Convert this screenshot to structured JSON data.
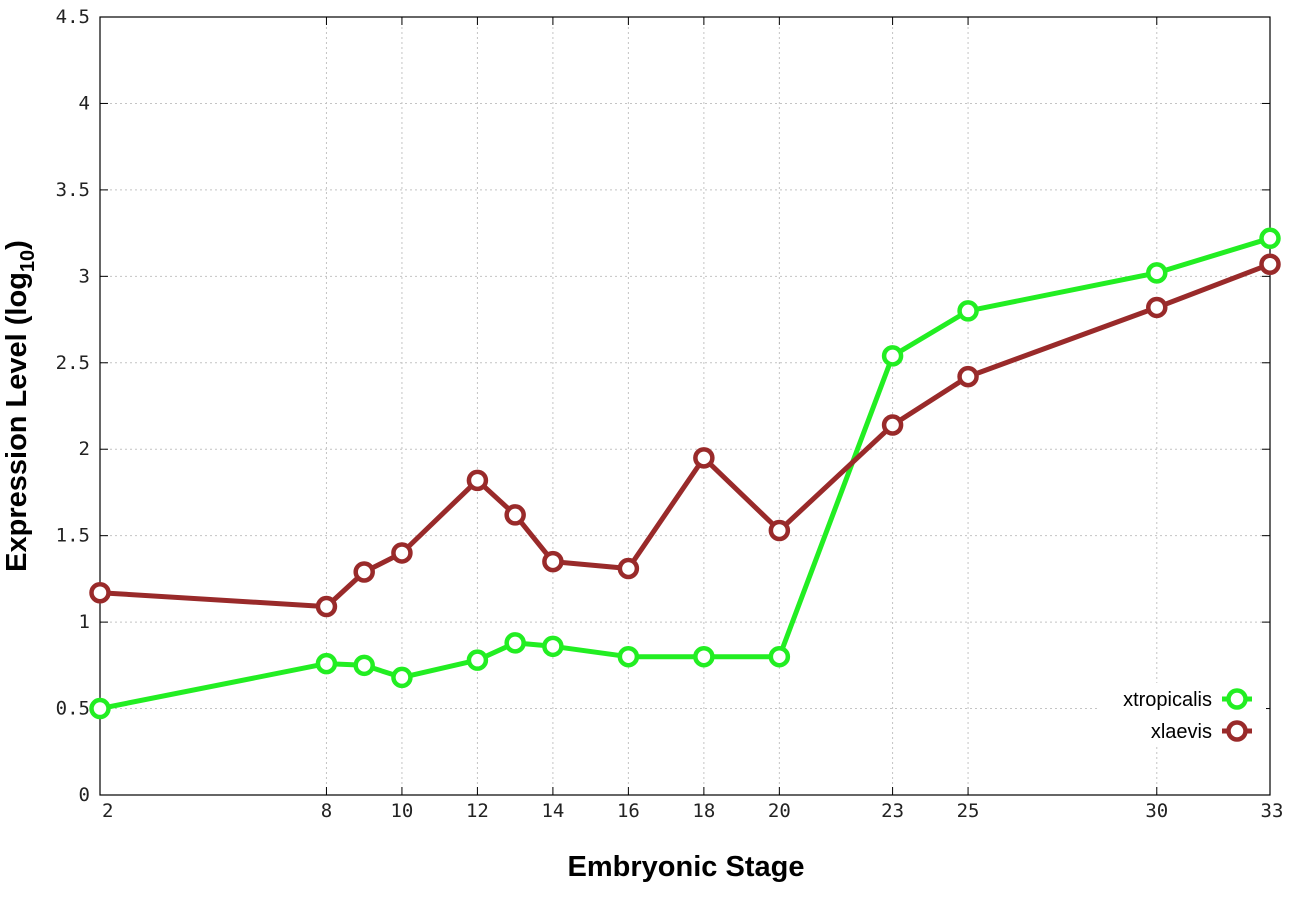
{
  "chart_data": {
    "type": "line",
    "title": "",
    "xlabel": "Embryonic Stage",
    "ylabel_main": "Expression Level (log",
    "ylabel_sub": "10",
    "ylabel_close": ")",
    "x": [
      2,
      8,
      9,
      10,
      12,
      13,
      14,
      16,
      18,
      20,
      23,
      25,
      30,
      33
    ],
    "xticks": [
      "2",
      "8",
      "10",
      "12",
      "14",
      "16",
      "18",
      "20",
      "23",
      "25",
      "30",
      "33"
    ],
    "xtick_values": [
      2,
      8,
      10,
      12,
      14,
      16,
      18,
      20,
      23,
      25,
      30,
      33
    ],
    "yticks": [
      "0",
      "0.5",
      "1",
      "1.5",
      "2",
      "2.5",
      "3",
      "3.5",
      "4",
      "4.5"
    ],
    "ytick_values": [
      0,
      0.5,
      1,
      1.5,
      2,
      2.5,
      3,
      3.5,
      4,
      4.5
    ],
    "xlim": [
      2,
      33
    ],
    "ylim": [
      0,
      4.5
    ],
    "grid": true,
    "legend_position": "bottom-right",
    "series": [
      {
        "name": "xtropicalis",
        "color": "#22ee22",
        "values": [
          0.5,
          0.76,
          0.75,
          0.68,
          0.78,
          0.88,
          0.86,
          0.8,
          0.8,
          0.8,
          2.54,
          2.8,
          3.02,
          3.22
        ]
      },
      {
        "name": "xlaevis",
        "color": "#992a2a",
        "values": [
          1.17,
          1.09,
          1.29,
          1.4,
          1.82,
          1.62,
          1.35,
          1.31,
          1.95,
          1.53,
          2.14,
          2.42,
          2.82,
          3.07
        ]
      }
    ]
  }
}
